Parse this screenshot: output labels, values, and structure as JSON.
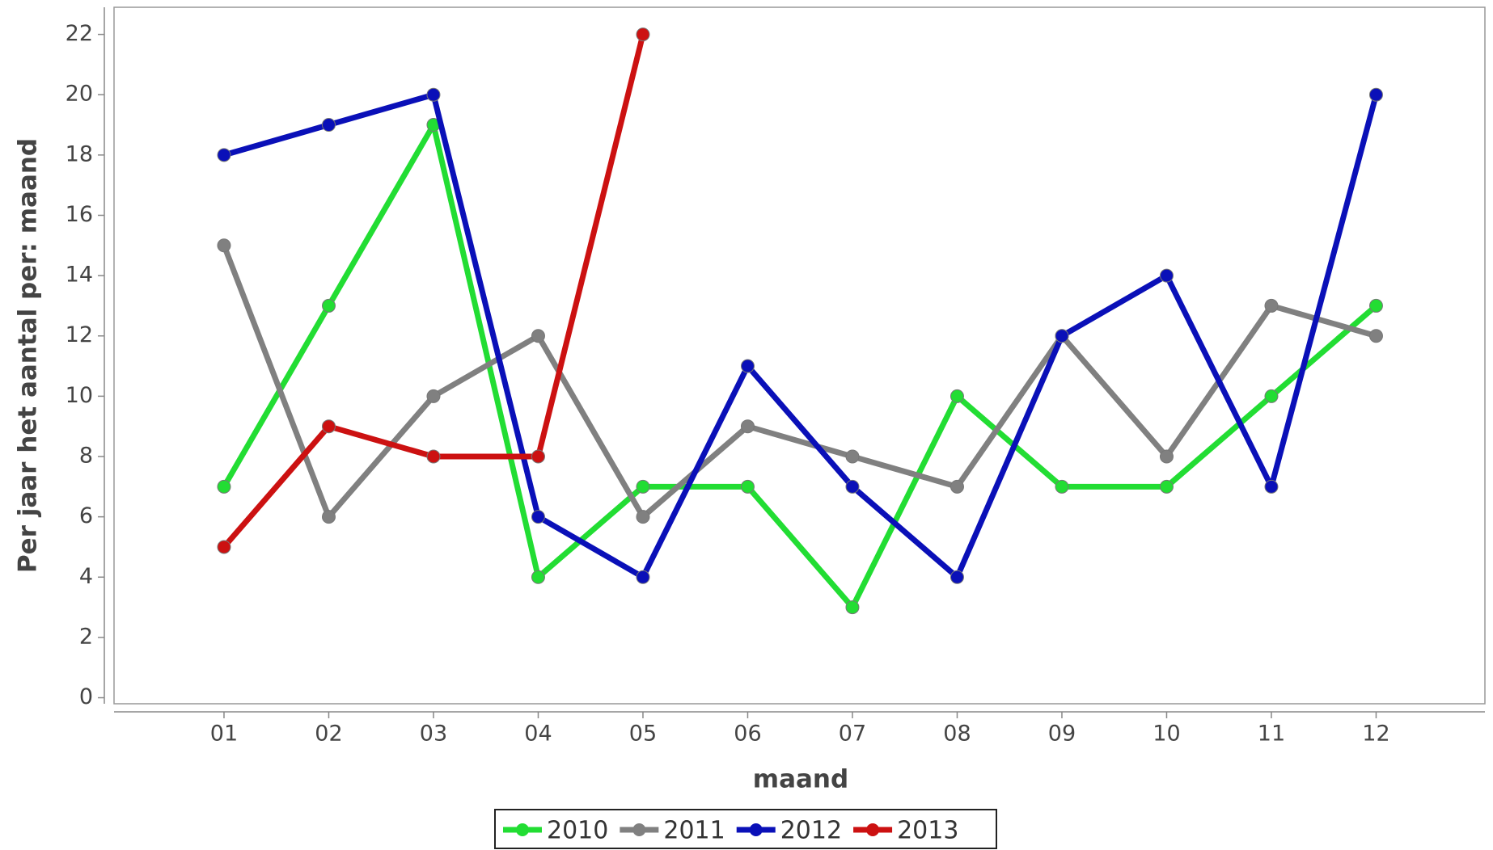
{
  "chart_data": {
    "type": "line",
    "x_label": "maand",
    "y_label": "Per jaar het aantal per: maand",
    "categories": [
      "01",
      "02",
      "03",
      "04",
      "05",
      "06",
      "07",
      "08",
      "09",
      "10",
      "11",
      "12"
    ],
    "series": [
      {
        "name": "2010",
        "color": "#22dd33",
        "values": [
          7,
          13,
          19,
          4,
          7,
          7,
          3,
          10,
          7,
          7,
          10,
          13
        ]
      },
      {
        "name": "2011",
        "color": "#808080",
        "values": [
          15,
          6,
          10,
          12,
          6,
          9,
          8,
          7,
          12,
          8,
          13,
          12
        ]
      },
      {
        "name": "2012",
        "color": "#0a10b8",
        "values": [
          18,
          19,
          20,
          6,
          4,
          11,
          7,
          4,
          12,
          14,
          7,
          20
        ]
      },
      {
        "name": "2013",
        "color": "#cc1111",
        "values": [
          5,
          9,
          8,
          8,
          22,
          null,
          null,
          null,
          null,
          null,
          null,
          null
        ]
      }
    ],
    "ylim": [
      -0.2,
      22.9
    ],
    "yticks": [
      0,
      2,
      4,
      6,
      8,
      10,
      12,
      14,
      16,
      18,
      20,
      22
    ],
    "legend": "bottom"
  }
}
